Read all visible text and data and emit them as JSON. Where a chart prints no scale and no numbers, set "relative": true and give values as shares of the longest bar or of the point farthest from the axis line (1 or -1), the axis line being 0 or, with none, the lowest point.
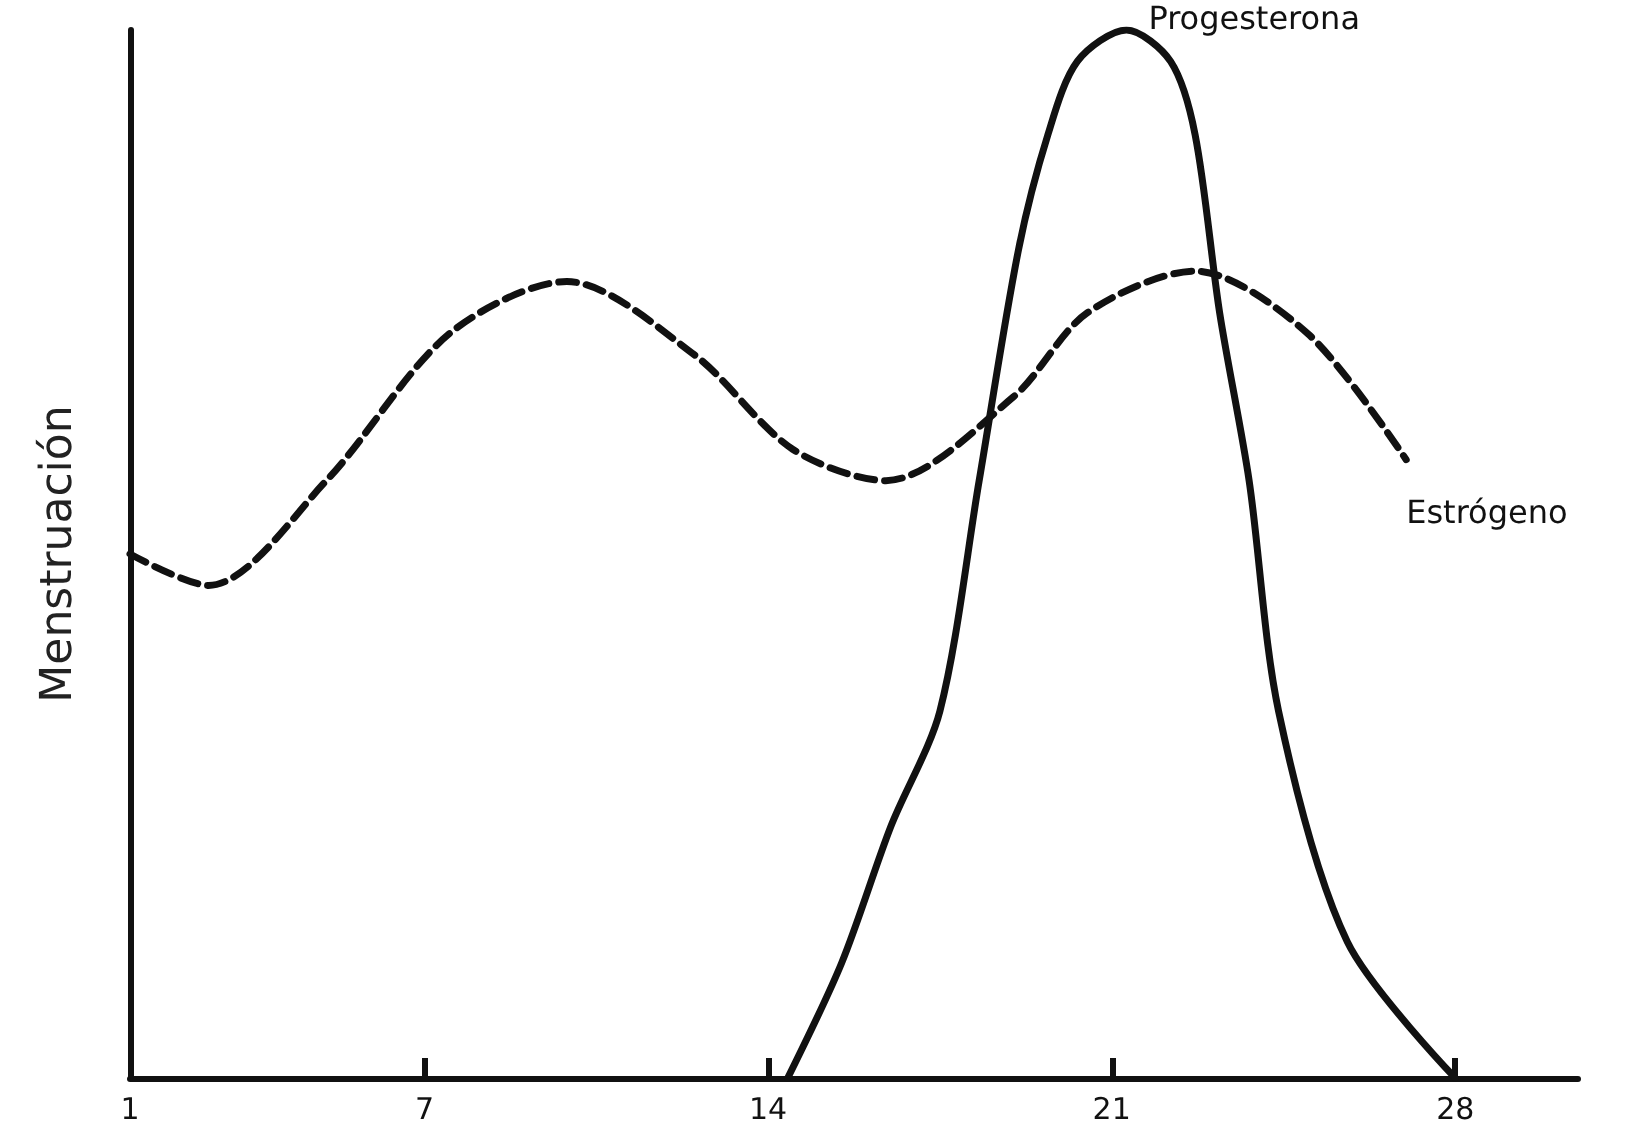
{
  "chart_data": {
    "type": "line",
    "ylabel": "Menstruación",
    "relative": true,
    "xlim": [
      1,
      30.5
    ],
    "xticks": [
      1,
      7,
      14,
      21,
      28
    ],
    "grid": false,
    "legend": false,
    "marker": "none",
    "series": [
      {
        "name": "Estrógeno",
        "color": "#111111",
        "line_style": "dashed",
        "x": [
          1,
          2.6,
          5,
          7.5,
          9.9,
          12.5,
          14.5,
          16.4,
          19,
          20.5,
          22.7,
          25,
          27
        ],
        "values": [
          0.5,
          0.47,
          0.57,
          0.71,
          0.76,
          0.69,
          0.6,
          0.57,
          0.65,
          0.73,
          0.77,
          0.71,
          0.59
        ]
      },
      {
        "name": "Progesterona",
        "color": "#111111",
        "line_style": "solid",
        "x": [
          14.4,
          15.5,
          16.5,
          17.5,
          18.3,
          19.1,
          19.7,
          20.3,
          21.3,
          22.2,
          22.7,
          23.2,
          23.8,
          24.4,
          25.8,
          28
        ],
        "values": [
          0,
          0.11,
          0.24,
          0.35,
          0.57,
          0.79,
          0.9,
          0.97,
          1,
          0.97,
          0.9,
          0.73,
          0.57,
          0.35,
          0.13,
          0
        ]
      }
    ]
  }
}
